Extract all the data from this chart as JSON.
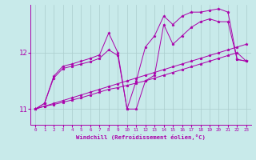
{
  "xlabel": "Windchill (Refroidissement éolien,°C)",
  "bg_color": "#c8eaea",
  "line_color": "#aa00aa",
  "grid_color": "#aacccc",
  "xlim": [
    -0.5,
    23.5
  ],
  "ylim": [
    10.72,
    12.85
  ],
  "yticks": [
    11,
    12
  ],
  "xticks": [
    0,
    1,
    2,
    3,
    4,
    5,
    6,
    7,
    8,
    9,
    10,
    11,
    12,
    13,
    14,
    15,
    16,
    17,
    18,
    19,
    20,
    21,
    22,
    23
  ],
  "lines": [
    {
      "x": [
        0,
        1,
        2,
        3,
        4,
        5,
        6,
        7,
        8,
        9,
        10,
        11,
        12,
        13,
        14,
        15,
        16,
        17,
        18,
        19,
        20,
        21,
        22,
        23
      ],
      "y": [
        11.0,
        11.05,
        11.08,
        11.12,
        11.16,
        11.2,
        11.25,
        11.3,
        11.35,
        11.38,
        11.42,
        11.46,
        11.5,
        11.55,
        11.6,
        11.65,
        11.7,
        11.75,
        11.8,
        11.85,
        11.9,
        11.95,
        12.0,
        11.85
      ]
    },
    {
      "x": [
        0,
        1,
        2,
        3,
        4,
        5,
        6,
        7,
        8,
        9,
        10,
        11,
        12,
        13,
        14,
        15,
        16,
        17,
        18,
        19,
        20,
        21,
        22,
        23
      ],
      "y": [
        11.0,
        11.05,
        11.1,
        11.15,
        11.2,
        11.25,
        11.3,
        11.35,
        11.4,
        11.45,
        11.5,
        11.55,
        11.6,
        11.65,
        11.7,
        11.75,
        11.8,
        11.85,
        11.9,
        11.95,
        12.0,
        12.05,
        12.1,
        12.15
      ]
    },
    {
      "x": [
        0,
        1,
        2,
        3,
        4,
        5,
        6,
        7,
        8,
        9,
        10,
        11,
        12,
        13,
        14,
        15,
        16,
        17,
        18,
        19,
        20,
        21,
        22,
        23
      ],
      "y": [
        11.0,
        11.1,
        11.55,
        11.72,
        11.76,
        11.8,
        11.84,
        11.9,
        12.05,
        11.95,
        11.0,
        11.0,
        11.5,
        11.6,
        12.5,
        12.15,
        12.3,
        12.45,
        12.55,
        12.6,
        12.55,
        12.55,
        11.88,
        11.85
      ]
    },
    {
      "x": [
        0,
        1,
        2,
        3,
        4,
        5,
        6,
        7,
        8,
        9,
        10,
        11,
        12,
        13,
        14,
        15,
        16,
        17,
        18,
        19,
        20,
        21,
        22,
        23
      ],
      "y": [
        11.0,
        11.1,
        11.58,
        11.76,
        11.8,
        11.85,
        11.9,
        11.96,
        12.35,
        12.0,
        11.0,
        11.5,
        12.1,
        12.3,
        12.65,
        12.5,
        12.65,
        12.72,
        12.72,
        12.75,
        12.78,
        12.72,
        11.88,
        11.85
      ]
    }
  ]
}
